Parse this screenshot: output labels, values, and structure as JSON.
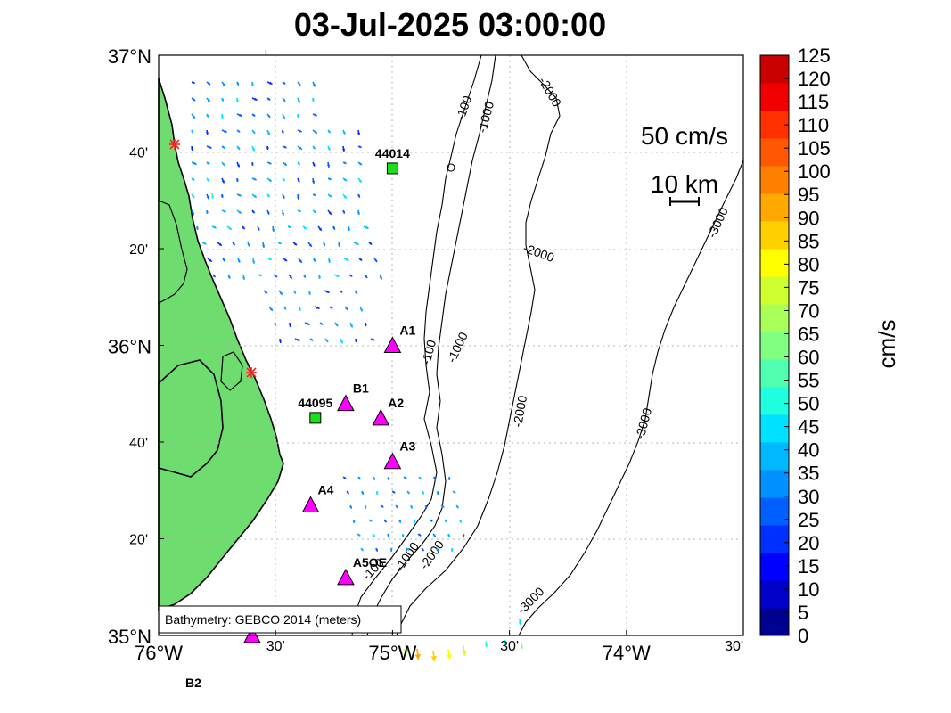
{
  "title": "03-Jul-2025 03:00:00",
  "lat_ticks": [
    {
      "label": "37°N",
      "big": true,
      "lat": 37.0
    },
    {
      "label": "40'",
      "big": false,
      "lat": 36.6667
    },
    {
      "label": "20'",
      "big": false,
      "lat": 36.3333
    },
    {
      "label": "36°N",
      "big": true,
      "lat": 36.0
    },
    {
      "label": "40'",
      "big": false,
      "lat": 35.6667
    },
    {
      "label": "20'",
      "big": false,
      "lat": 35.3333
    },
    {
      "label": "35°N",
      "big": true,
      "lat": 35.0
    }
  ],
  "lon_ticks": [
    {
      "label": "76°W",
      "big": true,
      "lon": -76.0
    },
    {
      "label": "30'",
      "big": false,
      "lon": -75.5
    },
    {
      "label": "75°W",
      "big": true,
      "lon": -75.0
    },
    {
      "label": "30'",
      "big": false,
      "lon": -74.5
    },
    {
      "label": "74°W",
      "big": true,
      "lon": -74.0
    },
    {
      "label": "30'",
      "big": false,
      "lon": -73.5
    }
  ],
  "speed_reference": "50 cm/s",
  "distance_reference": "10 km",
  "bathymetry_note": "Bathymetry: GEBCO 2014 (meters)",
  "colorbar": {
    "label": "cm/s",
    "min": 0,
    "max": 125,
    "tick_labels": [
      "0",
      "5",
      "10",
      "15",
      "20",
      "25",
      "30",
      "35",
      "40",
      "45",
      "50",
      "55",
      "60",
      "65",
      "70",
      "75",
      "80",
      "85",
      "90",
      "95",
      "100",
      "105",
      "110",
      "115",
      "120",
      "125"
    ],
    "colors": [
      "#00008f",
      "#0000c8",
      "#0000ff",
      "#0030ff",
      "#0060ff",
      "#0090ff",
      "#00b8ff",
      "#00e0ff",
      "#20ffdf",
      "#50ffaf",
      "#80ff80",
      "#a8ff58",
      "#d0ff30",
      "#ffff00",
      "#ffd000",
      "#ffa800",
      "#ff8000",
      "#ff5800",
      "#ff3000",
      "#f00000",
      "#c80000"
    ]
  },
  "stations": [
    {
      "id": "44014",
      "kind": "buoy",
      "lon": -75.0,
      "lat": 36.61
    },
    {
      "id": "44095",
      "kind": "buoy",
      "lon": -75.33,
      "lat": 35.75
    },
    {
      "id": "A1",
      "kind": "mooring",
      "lon": -75.0,
      "lat": 36.0
    },
    {
      "id": "B1",
      "kind": "mooring",
      "lon": -75.2,
      "lat": 35.8
    },
    {
      "id": "A2",
      "kind": "mooring",
      "lon": -75.05,
      "lat": 35.75
    },
    {
      "id": "A3",
      "kind": "mooring",
      "lon": -75.0,
      "lat": 35.6
    },
    {
      "id": "A4",
      "kind": "mooring",
      "lon": -75.35,
      "lat": 35.45
    },
    {
      "id": "A5OE",
      "kind": "mooring",
      "lon": -75.2,
      "lat": 35.2
    },
    {
      "id": "B2",
      "kind": "mooring",
      "lon": -75.6,
      "lat": 35.0
    }
  ],
  "contours": [
    {
      "depth": "-100"
    },
    {
      "depth": "-1000"
    },
    {
      "depth": "-2000"
    },
    {
      "depth": "-3000"
    }
  ],
  "colors": {
    "land": "#6fdc6f",
    "buoy": "#19e019",
    "mooring": "#ff00ff",
    "contour": "#000000",
    "grid": "#b4b4b4",
    "site": "#ff2020"
  }
}
